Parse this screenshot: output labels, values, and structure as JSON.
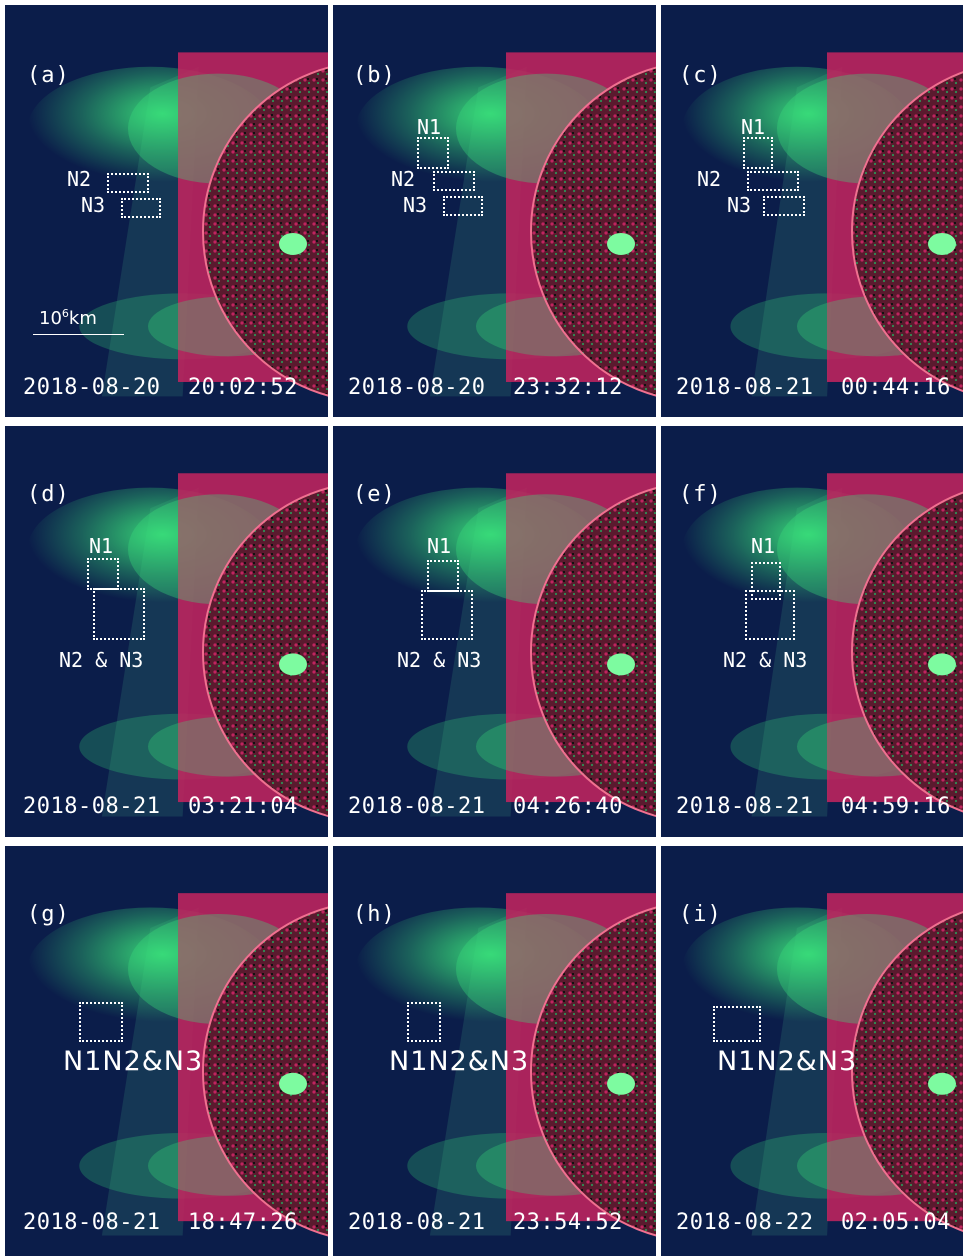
{
  "colors": {
    "background": "#0b1d4a",
    "corona_green": "#39e07a",
    "euv_magenta": "#c0245f",
    "disk_texture": "#5a1a2e",
    "label": "#ffffff"
  },
  "scale_bar": {
    "base": "10",
    "exp": "6",
    "unit": "km"
  },
  "panels": [
    {
      "id": "a",
      "label": "(a)",
      "timestamp": "2018-08-20  20:02:52",
      "regions": [
        {
          "name": "N2",
          "label": "N2"
        },
        {
          "name": "N3",
          "label": "N3"
        }
      ]
    },
    {
      "id": "b",
      "label": "(b)",
      "timestamp": "2018-08-20  23:32:12",
      "regions": [
        {
          "name": "N1",
          "label": "N1"
        },
        {
          "name": "N2",
          "label": "N2"
        },
        {
          "name": "N3",
          "label": "N3"
        }
      ]
    },
    {
      "id": "c",
      "label": "(c)",
      "timestamp": "2018-08-21  00:44:16",
      "regions": [
        {
          "name": "N1",
          "label": "N1"
        },
        {
          "name": "N2",
          "label": "N2"
        },
        {
          "name": "N3",
          "label": "N3"
        }
      ]
    },
    {
      "id": "d",
      "label": "(d)",
      "timestamp": "2018-08-21  03:21:04",
      "regions": [
        {
          "name": "N1",
          "label": "N1"
        },
        {
          "name": "N2N3",
          "label": "N2 & N3"
        }
      ]
    },
    {
      "id": "e",
      "label": "(e)",
      "timestamp": "2018-08-21  04:26:40",
      "regions": [
        {
          "name": "N1",
          "label": "N1"
        },
        {
          "name": "N2N3",
          "label": "N2 & N3"
        }
      ]
    },
    {
      "id": "f",
      "label": "(f)",
      "timestamp": "2018-08-21  04:59:16",
      "regions": [
        {
          "name": "N1",
          "label": "N1"
        },
        {
          "name": "N2N3",
          "label": "N2 & N3"
        }
      ]
    },
    {
      "id": "g",
      "label": "(g)",
      "timestamp": "2018-08-21  18:47:26",
      "regions": [
        {
          "name": "N1N2N3",
          "label": "N1N2&N3"
        }
      ]
    },
    {
      "id": "h",
      "label": "(h)",
      "timestamp": "2018-08-21  23:54:52",
      "regions": [
        {
          "name": "N1N2N3",
          "label": "N1N2&N3"
        }
      ]
    },
    {
      "id": "i",
      "label": "(i)",
      "timestamp": "2018-08-22  02:05:04",
      "regions": [
        {
          "name": "N1N2N3",
          "label": "N1N2&N3"
        }
      ]
    }
  ]
}
